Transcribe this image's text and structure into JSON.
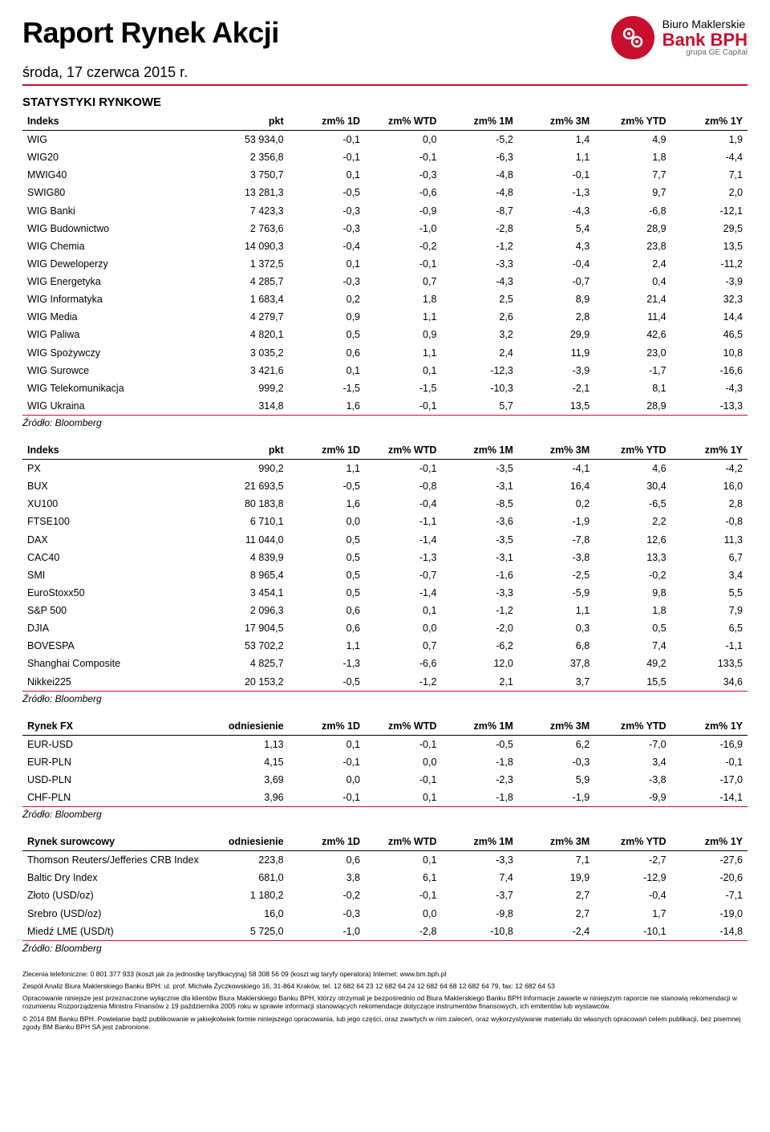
{
  "title": "Raport Rynek Akcji",
  "date": "środa, 17 czerwca 2015 r.",
  "logo": {
    "line1": "Biuro Maklerskie",
    "bank": "Bank",
    "bph": "BPH",
    "line3": "grupa GE Capital"
  },
  "section1": {
    "title": "STATYSTYKI RYNKOWE"
  },
  "source": "Źródło: Bloomberg",
  "headers": {
    "indeks": "Indeks",
    "pkt": "pkt",
    "d1": "zm% 1D",
    "wtd": "zm% WTD",
    "m1": "zm% 1M",
    "m3": "zm% 3M",
    "ytd": "zm% YTD",
    "y1": "zm% 1Y",
    "rynekfx": "Rynek FX",
    "odniesienie": "odniesienie",
    "surowcowy": "Rynek surowcowy"
  },
  "t1": [
    [
      "WIG",
      "53 934,0",
      "-0,1",
      "0,0",
      "-5,2",
      "1,4",
      "4,9",
      "1,9"
    ],
    [
      "WIG20",
      "2 356,8",
      "-0,1",
      "-0,1",
      "-6,3",
      "1,1",
      "1,8",
      "-4,4"
    ],
    [
      "MWIG40",
      "3 750,7",
      "0,1",
      "-0,3",
      "-4,8",
      "-0,1",
      "7,7",
      "7,1"
    ],
    [
      "SWIG80",
      "13 281,3",
      "-0,5",
      "-0,6",
      "-4,8",
      "-1,3",
      "9,7",
      "2,0"
    ],
    [
      "WIG Banki",
      "7 423,3",
      "-0,3",
      "-0,9",
      "-8,7",
      "-4,3",
      "-6,8",
      "-12,1"
    ],
    [
      "WIG Budownictwo",
      "2 763,6",
      "-0,3",
      "-1,0",
      "-2,8",
      "5,4",
      "28,9",
      "29,5"
    ],
    [
      "WIG Chemia",
      "14 090,3",
      "-0,4",
      "-0,2",
      "-1,2",
      "4,3",
      "23,8",
      "13,5"
    ],
    [
      "WIG Deweloperzy",
      "1 372,5",
      "0,1",
      "-0,1",
      "-3,3",
      "-0,4",
      "2,4",
      "-11,2"
    ],
    [
      "WIG Energetyka",
      "4 285,7",
      "-0,3",
      "0,7",
      "-4,3",
      "-0,7",
      "0,4",
      "-3,9"
    ],
    [
      "WIG Informatyka",
      "1 683,4",
      "0,2",
      "1,8",
      "2,5",
      "8,9",
      "21,4",
      "32,3"
    ],
    [
      "WIG Media",
      "4 279,7",
      "0,9",
      "1,1",
      "2,6",
      "2,8",
      "11,4",
      "14,4"
    ],
    [
      "WIG Paliwa",
      "4 820,1",
      "0,5",
      "0,9",
      "3,2",
      "29,9",
      "42,6",
      "46,5"
    ],
    [
      "WIG Spożywczy",
      "3 035,2",
      "0,6",
      "1,1",
      "2,4",
      "11,9",
      "23,0",
      "10,8"
    ],
    [
      "WIG Surowce",
      "3 421,6",
      "0,1",
      "0,1",
      "-12,3",
      "-3,9",
      "-1,7",
      "-16,6"
    ],
    [
      "WIG Telekomunikacja",
      "999,2",
      "-1,5",
      "-1,5",
      "-10,3",
      "-2,1",
      "8,1",
      "-4,3"
    ],
    [
      "WIG Ukraina",
      "314,8",
      "1,6",
      "-0,1",
      "5,7",
      "13,5",
      "28,9",
      "-13,3"
    ]
  ],
  "t2": [
    [
      "PX",
      "990,2",
      "1,1",
      "-0,1",
      "-3,5",
      "-4,1",
      "4,6",
      "-4,2"
    ],
    [
      "BUX",
      "21 693,5",
      "-0,5",
      "-0,8",
      "-3,1",
      "16,4",
      "30,4",
      "16,0"
    ],
    [
      "XU100",
      "80 183,8",
      "1,6",
      "-0,4",
      "-8,5",
      "0,2",
      "-6,5",
      "2,8"
    ],
    [
      "FTSE100",
      "6 710,1",
      "0,0",
      "-1,1",
      "-3,6",
      "-1,9",
      "2,2",
      "-0,8"
    ],
    [
      "DAX",
      "11 044,0",
      "0,5",
      "-1,4",
      "-3,5",
      "-7,8",
      "12,6",
      "11,3"
    ],
    [
      "CAC40",
      "4 839,9",
      "0,5",
      "-1,3",
      "-3,1",
      "-3,8",
      "13,3",
      "6,7"
    ],
    [
      "SMI",
      "8 965,4",
      "0,5",
      "-0,7",
      "-1,6",
      "-2,5",
      "-0,2",
      "3,4"
    ],
    [
      "EuroStoxx50",
      "3 454,1",
      "0,5",
      "-1,4",
      "-3,3",
      "-5,9",
      "9,8",
      "5,5"
    ],
    [
      "S&P 500",
      "2 096,3",
      "0,6",
      "0,1",
      "-1,2",
      "1,1",
      "1,8",
      "7,9"
    ],
    [
      "DJIA",
      "17 904,5",
      "0,6",
      "0,0",
      "-2,0",
      "0,3",
      "0,5",
      "6,5"
    ],
    [
      "BOVESPA",
      "53 702,2",
      "1,1",
      "0,7",
      "-6,2",
      "6,8",
      "7,4",
      "-1,1"
    ],
    [
      "Shanghai Composite",
      "4 825,7",
      "-1,3",
      "-6,6",
      "12,0",
      "37,8",
      "49,2",
      "133,5"
    ],
    [
      "Nikkei225",
      "20 153,2",
      "-0,5",
      "-1,2",
      "2,1",
      "3,7",
      "15,5",
      "34,6"
    ]
  ],
  "t3": [
    [
      "EUR-USD",
      "1,13",
      "0,1",
      "-0,1",
      "-0,5",
      "6,2",
      "-7,0",
      "-16,9"
    ],
    [
      "EUR-PLN",
      "4,15",
      "-0,1",
      "0,0",
      "-1,8",
      "-0,3",
      "3,4",
      "-0,1"
    ],
    [
      "USD-PLN",
      "3,69",
      "0,0",
      "-0,1",
      "-2,3",
      "5,9",
      "-3,8",
      "-17,0"
    ],
    [
      "CHF-PLN",
      "3,96",
      "-0,1",
      "0,1",
      "-1,8",
      "-1,9",
      "-9,9",
      "-14,1"
    ]
  ],
  "t4": [
    [
      "Thomson Reuters/Jefferies CRB Index",
      "223,8",
      "0,6",
      "0,1",
      "-3,3",
      "7,1",
      "-2,7",
      "-27,6"
    ],
    [
      "Baltic Dry Index",
      "681,0",
      "3,8",
      "6,1",
      "7,4",
      "19,9",
      "-12,9",
      "-20,6"
    ],
    [
      "Złoto (USD/oz)",
      "1 180,2",
      "-0,2",
      "-0,1",
      "-3,7",
      "2,7",
      "-0,4",
      "-7,1"
    ],
    [
      "Srebro (USD/oz)",
      "16,0",
      "-0,3",
      "0,0",
      "-9,8",
      "2,7",
      "1,7",
      "-19,0"
    ],
    [
      "Miedź LME (USD/t)",
      "5 725,0",
      "-1,0",
      "-2,8",
      "-10,8",
      "-2,4",
      "-10,1",
      "-14,8"
    ]
  ],
  "footnotes": {
    "p1": "Zlecenia telefoniczne: 0 801 377 933 (koszt jak za jednostkę taryfikacyjną)  58 308 56 09 (koszt wg taryfy operatora)  Internet: www.bm.bph.pl",
    "p2": "Zespół Analiz Biura Maklerskiego Banku BPH: ul. prof. Michała Życzkowskiego 16, 31-864 Kraków,  tel. 12 682 64 23  12 682 64 24  12 682 64 68  12 682 64 79,  fax: 12 682 64 53",
    "p3": "Opracowanie niniejsze jest przeznaczone wyłącznie dla klientów Biura Maklerskiego Banku BPH, którzy otrzymali je bezpośrednio od Biura Maklerskiego Banku BPH Informacje zawarte w niniejszym raporcie nie stanowią rekomendacji w rozumieniu Rozporządzenia Ministra Finansów z 19 października 2005 roku w sprawie informacji stanowiących rekomendacje dotyczące instrumentów finansowych, ich emitentów lub wystawców.",
    "p4": "© 2014 BM Banku BPH. Powielanie bądź publikowanie w jakiejkolwiek formie niniejszego opracowania, lub jego części, oraz zwartych w nim zaleceń, oraz wykorzystywanie materiału do własnych opracowań celem publikacji, bez pisemnej zgody BM Banku BPH SA jest zabronione."
  }
}
